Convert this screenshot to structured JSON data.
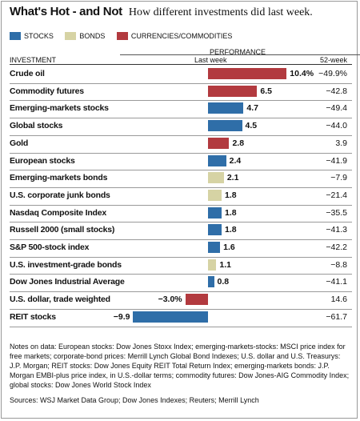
{
  "title": "What's Hot - and Not",
  "subtitle": "How different investments did last week.",
  "legend": [
    {
      "label": "STOCKS",
      "color": "#2f6ea8"
    },
    {
      "label": "BONDS",
      "color": "#d6d3a4"
    },
    {
      "label": "CURRENCIES/COMMODITIES",
      "color": "#b23a3f"
    }
  ],
  "headers": {
    "investment": "INVESTMENT",
    "performance": "PERFORMANCE",
    "last_week": "Last week",
    "week52": "52-week"
  },
  "chart_data": {
    "type": "bar",
    "orientation": "horizontal",
    "value_unit": "%",
    "categories": [
      "Crude oil",
      "Commodity futures",
      "Emerging-markets stocks",
      "Global stocks",
      "Gold",
      "European stocks",
      "Emerging-markets bonds",
      "U.S. corporate junk bonds",
      "Nasdaq Composite Index",
      "Russell 2000 (small stocks)",
      "S&P 500-stock index",
      "U.S. investment-grade bonds",
      "Dow Jones Industrial Average",
      "U.S. dollar, trade weighted",
      "REIT stocks"
    ],
    "rows": [
      {
        "label": "Crude oil",
        "value": 10.4,
        "value_label": "10.4%",
        "week52": "−49.9%",
        "group": "CURRENCIES/COMMODITIES"
      },
      {
        "label": "Commodity futures",
        "value": 6.5,
        "value_label": "6.5",
        "week52": "−42.8",
        "group": "CURRENCIES/COMMODITIES"
      },
      {
        "label": "Emerging-markets stocks",
        "value": 4.7,
        "value_label": "4.7",
        "week52": "−49.4",
        "group": "STOCKS"
      },
      {
        "label": "Global stocks",
        "value": 4.5,
        "value_label": "4.5",
        "week52": "−44.0",
        "group": "STOCKS"
      },
      {
        "label": "Gold",
        "value": 2.8,
        "value_label": "2.8",
        "week52": "3.9",
        "group": "CURRENCIES/COMMODITIES"
      },
      {
        "label": "European stocks",
        "value": 2.4,
        "value_label": "2.4",
        "week52": "−41.9",
        "group": "STOCKS"
      },
      {
        "label": "Emerging-markets bonds",
        "value": 2.1,
        "value_label": "2.1",
        "week52": "−7.9",
        "group": "BONDS"
      },
      {
        "label": "U.S. corporate junk bonds",
        "value": 1.8,
        "value_label": "1.8",
        "week52": "−21.4",
        "group": "BONDS"
      },
      {
        "label": "Nasdaq Composite Index",
        "value": 1.8,
        "value_label": "1.8",
        "week52": "−35.5",
        "group": "STOCKS"
      },
      {
        "label": "Russell 2000 (small stocks)",
        "value": 1.8,
        "value_label": "1.8",
        "week52": "−41.3",
        "group": "STOCKS"
      },
      {
        "label": "S&P 500-stock index",
        "value": 1.6,
        "value_label": "1.6",
        "week52": "−42.2",
        "group": "STOCKS"
      },
      {
        "label": "U.S. investment-grade bonds",
        "value": 1.1,
        "value_label": "1.1",
        "week52": "−8.8",
        "group": "BONDS"
      },
      {
        "label": "Dow Jones Industrial Average",
        "value": 0.8,
        "value_label": "0.8",
        "week52": "−41.1",
        "group": "STOCKS"
      },
      {
        "label": "U.S. dollar, trade weighted",
        "value": -3.0,
        "value_label": "−3.0%",
        "week52": "14.6",
        "group": "CURRENCIES/COMMODITIES"
      },
      {
        "label": "REIT stocks",
        "value": -9.9,
        "value_label": "−9.9",
        "week52": "−61.7",
        "group": "STOCKS"
      }
    ],
    "xlim": [
      -9.9,
      10.4
    ]
  },
  "notes": "Notes on data: European stocks: Dow Jones Stoxx Index; emerging-markets-stocks: MSCI price index for free markets; corporate-bond prices: Merrill Lynch Global Bond Indexes; U.S. dollar and U.S. Treasurys: J.P. Morgan; REIT stocks: Dow Jones Equity REIT Total Return Index; emerging-markets bonds: J.P. Morgan EMBI-plus price index, in U.S.-dollar terms; commodity futures: Dow Jones-AIG Commodity Index; global stocks: Dow Jones World Stock Index",
  "sources": "Sources: WSJ Market Data Group; Dow Jones Indexes; Reuters; Merrill Lynch"
}
